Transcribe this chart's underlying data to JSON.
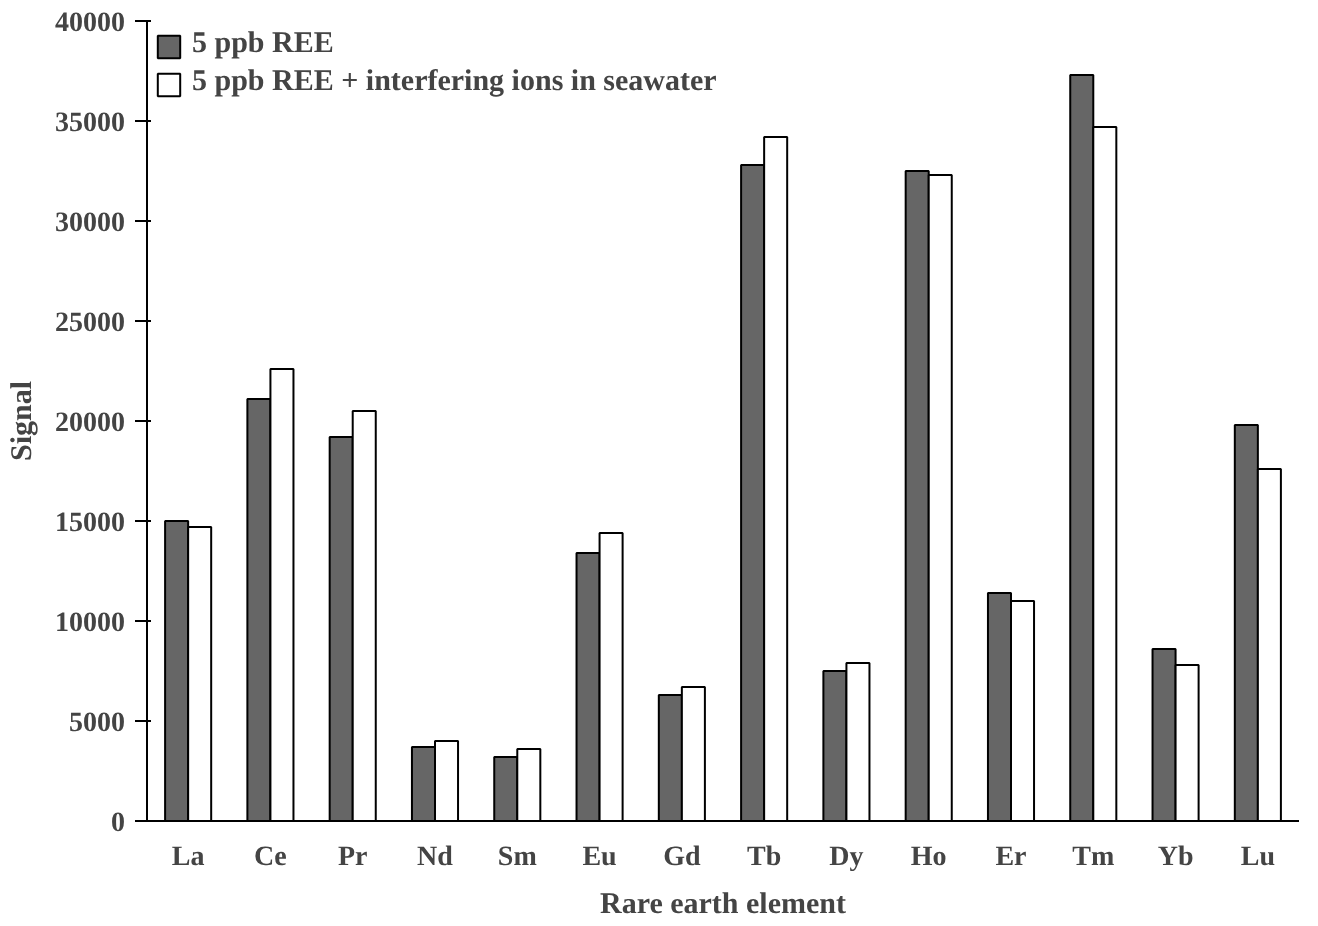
{
  "chart_data": {
    "type": "bar",
    "xlabel": "Rare earth element",
    "ylabel": "Signal",
    "categories": [
      "La",
      "Ce",
      "Pr",
      "Nd",
      "Sm",
      "Eu",
      "Gd",
      "Tb",
      "Dy",
      "Ho",
      "Er",
      "Tm",
      "Yb",
      "Lu"
    ],
    "series": [
      {
        "name": "5 ppb REE",
        "color": "#666666",
        "values": [
          15000,
          21100,
          19200,
          3700,
          3200,
          13400,
          6300,
          32800,
          7500,
          32500,
          11400,
          37300,
          8600,
          19800
        ]
      },
      {
        "name": "5 ppb REE + interfering ions in seawater",
        "color": "#ffffff",
        "values": [
          14700,
          22600,
          20500,
          4000,
          3600,
          14400,
          6700,
          34200,
          7900,
          32300,
          11000,
          34700,
          7800,
          17600
        ]
      }
    ],
    "ylim": [
      0,
      40000
    ],
    "yticks": [
      0,
      5000,
      10000,
      15000,
      20000,
      25000,
      30000,
      35000,
      40000
    ],
    "grid": false,
    "legend": "top left"
  }
}
